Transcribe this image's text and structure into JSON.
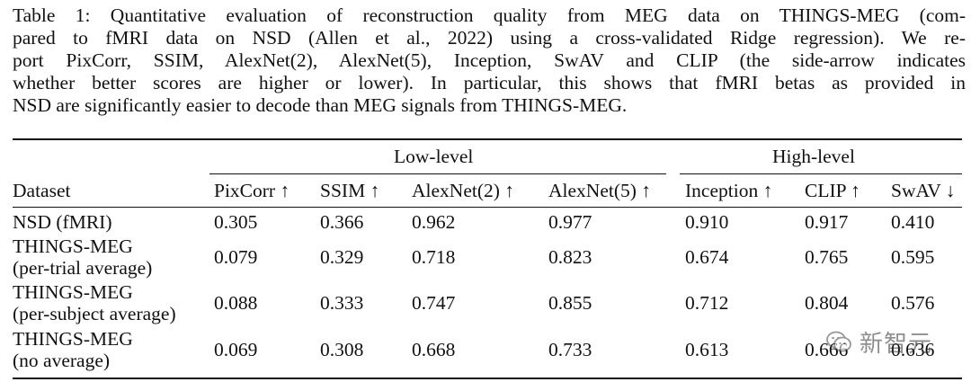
{
  "caption": {
    "lines": [
      "Table 1: Quantitative evaluation of reconstruction quality from MEG data on THINGS-MEG (com-",
      "pared to fMRI data on NSD (Allen et al., 2022) using a cross-validated Ridge regression). We re-",
      "port PixCorr, SSIM, AlexNet(2), AlexNet(5), Inception, SwAV and CLIP (the side-arrow indicates",
      "whether better scores are higher or lower). In particular, this shows that fMRI betas as provided in",
      "NSD are significantly easier to decode than MEG signals from THINGS-MEG."
    ]
  },
  "table": {
    "groups": {
      "low": "Low-level",
      "high": "High-level"
    },
    "headers": [
      "Dataset",
      "PixCorr ↑",
      "SSIM ↑",
      "AlexNet(2) ↑",
      "AlexNet(5) ↑",
      "Inception ↑",
      "CLIP ↑",
      "SwAV ↓"
    ],
    "rows": [
      {
        "dataset": [
          "NSD (fMRI)"
        ],
        "values": [
          "0.305",
          "0.366",
          "0.962",
          "0.977",
          "0.910",
          "0.917",
          "0.410"
        ]
      },
      {
        "dataset": [
          "THINGS-MEG",
          "(per-trial average)"
        ],
        "values": [
          "0.079",
          "0.329",
          "0.718",
          "0.823",
          "0.674",
          "0.765",
          "0.595"
        ]
      },
      {
        "dataset": [
          "THINGS-MEG",
          "(per-subject average)"
        ],
        "values": [
          "0.088",
          "0.333",
          "0.747",
          "0.855",
          "0.712",
          "0.804",
          "0.576"
        ]
      },
      {
        "dataset": [
          "THINGS-MEG",
          "(no average)"
        ],
        "values": [
          "0.069",
          "0.308",
          "0.668",
          "0.733",
          "0.613",
          "0.666",
          "0.636"
        ]
      }
    ]
  },
  "watermark": {
    "text": "新智元",
    "icon": "wechat-icon"
  }
}
